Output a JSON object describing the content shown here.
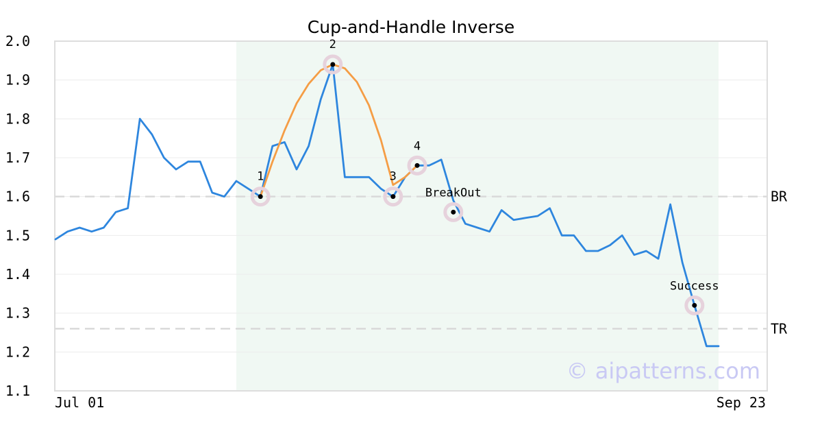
{
  "chart_data": {
    "type": "line",
    "title": "Cup-and-Handle Inverse",
    "ylim": [
      1.1,
      2.0
    ],
    "yticks": [
      "2.0",
      "1.9",
      "1.8",
      "1.7",
      "1.6",
      "1.5",
      "1.4",
      "1.3",
      "1.2",
      "1.1"
    ],
    "xtick_labels": [
      "Jul 01",
      "Sep 23"
    ],
    "xlim": [
      0,
      57
    ],
    "grid": true,
    "shaded_region": [
      15,
      55
    ],
    "series": [
      {
        "color": "#2e86de",
        "values": [
          1.49,
          1.51,
          1.52,
          1.51,
          1.52,
          1.56,
          1.57,
          1.8,
          1.76,
          1.7,
          1.67,
          1.69,
          1.69,
          1.61,
          1.6,
          1.64,
          1.62,
          1.6,
          1.73,
          1.74,
          1.67,
          1.73,
          1.85,
          1.94,
          1.65,
          1.65,
          1.65,
          1.62,
          1.6,
          1.65,
          1.68,
          1.68,
          1.695,
          1.59,
          1.53,
          1.52,
          1.51,
          1.565,
          1.54,
          1.545,
          1.55,
          1.57,
          1.5,
          1.5,
          1.46,
          1.46,
          1.475,
          1.5,
          1.45,
          1.46,
          1.44,
          1.58,
          1.43,
          1.32,
          1.215,
          1.215
        ]
      },
      {
        "color": "#f59d45",
        "x": [
          17,
          18,
          19,
          20,
          21,
          22,
          23,
          24,
          25,
          26,
          27,
          28,
          29,
          30
        ],
        "values": [
          1.6,
          1.69,
          1.77,
          1.84,
          1.89,
          1.925,
          1.94,
          1.93,
          1.895,
          1.835,
          1.745,
          1.63,
          1.65,
          1.68
        ]
      }
    ],
    "points": [
      {
        "label": "1",
        "x": 17,
        "y": 1.6
      },
      {
        "label": "2",
        "x": 23,
        "y": 1.94
      },
      {
        "label": "3",
        "x": 28,
        "y": 1.6
      },
      {
        "label": "4",
        "x": 30,
        "y": 1.68
      },
      {
        "label": "BreakOut",
        "x": 33,
        "y": 1.56
      },
      {
        "label": "Success",
        "x": 53,
        "y": 1.32
      }
    ],
    "levels": [
      {
        "label": "BR",
        "y": 1.6
      },
      {
        "label": "TR",
        "y": 1.26
      }
    ],
    "watermark": "© aipatterns.com"
  }
}
